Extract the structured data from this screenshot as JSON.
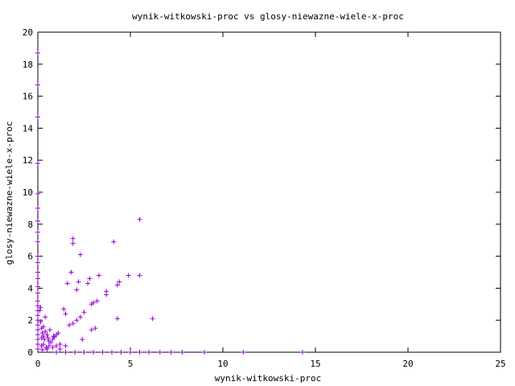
{
  "chart_data": {
    "type": "scatter",
    "title": "wynik-witkowski-proc vs glosy-niewazne-wiele-x-proc",
    "xlabel": "wynik-witkowski-proc",
    "ylabel": "glosy-niewazne-wiele-x-proc",
    "xlim": [
      0,
      25
    ],
    "ylim": [
      0,
      20
    ],
    "xticks": [
      "0",
      "5",
      "10",
      "15",
      "20",
      "25"
    ],
    "yticks": [
      "0",
      "2",
      "4",
      "6",
      "8",
      "10",
      "12",
      "14",
      "16",
      "18",
      "20"
    ],
    "grid": false,
    "legend": "none",
    "marker": "plus",
    "color": "#9400d3",
    "series": [
      {
        "points": [
          [
            0,
            18.7
          ],
          [
            0,
            16.7
          ],
          [
            0,
            14.7
          ],
          [
            0,
            11.8
          ],
          [
            0,
            9.9
          ],
          [
            0,
            9.0
          ],
          [
            0,
            8.2
          ],
          [
            0,
            7.5
          ],
          [
            0,
            6.9
          ],
          [
            0,
            6.0
          ],
          [
            0,
            5.6
          ],
          [
            0,
            5.0
          ],
          [
            0,
            4.6
          ],
          [
            0,
            4.1
          ],
          [
            0,
            3.7
          ],
          [
            0,
            3.2
          ],
          [
            0,
            2.9
          ],
          [
            0,
            2.6
          ],
          [
            0,
            2.3
          ],
          [
            0,
            2.0
          ],
          [
            0,
            1.7
          ],
          [
            0,
            1.4
          ],
          [
            0,
            1.1
          ],
          [
            0,
            0.8
          ],
          [
            0,
            0.5
          ],
          [
            0,
            0.2
          ],
          [
            0.1,
            2.6
          ],
          [
            0.15,
            1.9
          ],
          [
            0.2,
            1.5
          ],
          [
            0.25,
            1.2
          ],
          [
            0.3,
            1.0
          ],
          [
            0.35,
            0.8
          ],
          [
            0.4,
            1.3
          ],
          [
            0.5,
            1.1
          ],
          [
            0.55,
            0.9
          ],
          [
            0.6,
            0.7
          ],
          [
            0.7,
            0.6
          ],
          [
            0.8,
            0.8
          ],
          [
            0.9,
            0.95
          ],
          [
            1.0,
            1.1
          ],
          [
            1.1,
            1.2
          ],
          [
            0.2,
            0.4
          ],
          [
            0.3,
            0.5
          ],
          [
            0.45,
            0.3
          ],
          [
            0.5,
            0.2
          ],
          [
            0.2,
            0.9
          ],
          [
            0.3,
            1.6
          ],
          [
            0.15,
            2.8
          ],
          [
            0.4,
            2.2
          ],
          [
            0.6,
            0.4
          ],
          [
            0.8,
            0.3
          ],
          [
            1.0,
            0.4
          ],
          [
            1.2,
            0.5
          ],
          [
            0.25,
            0.15
          ],
          [
            0.65,
            1.4
          ],
          [
            0.85,
            1.0
          ],
          [
            1.4,
            2.7
          ],
          [
            1.5,
            2.4
          ],
          [
            1.6,
            4.3
          ],
          [
            1.7,
            1.7
          ],
          [
            1.9,
            1.8
          ],
          [
            1.9,
            7.1
          ],
          [
            1.9,
            6.8
          ],
          [
            1.8,
            5.0
          ],
          [
            2.1,
            3.9
          ],
          [
            2.2,
            4.4
          ],
          [
            2.3,
            6.1
          ],
          [
            2.1,
            2.0
          ],
          [
            2.3,
            2.2
          ],
          [
            2.5,
            2.5
          ],
          [
            2.7,
            4.3
          ],
          [
            2.8,
            4.6
          ],
          [
            2.9,
            3.0
          ],
          [
            2.9,
            1.4
          ],
          [
            3.1,
            1.5
          ],
          [
            3.0,
            3.1
          ],
          [
            3.2,
            3.2
          ],
          [
            3.3,
            4.8
          ],
          [
            3.7,
            3.8
          ],
          [
            3.7,
            3.6
          ],
          [
            4.1,
            6.9
          ],
          [
            4.3,
            4.2
          ],
          [
            4.4,
            4.4
          ],
          [
            4.3,
            2.1
          ],
          [
            4.9,
            4.8
          ],
          [
            5.5,
            8.3
          ],
          [
            5.5,
            4.8
          ],
          [
            6.2,
            2.1
          ],
          [
            1.5,
            0.4
          ],
          [
            2.4,
            0.8
          ],
          [
            1.2,
            0.2
          ],
          [
            1.0,
            0
          ],
          [
            1.5,
            0
          ],
          [
            2.0,
            0
          ],
          [
            2.5,
            0
          ],
          [
            3.0,
            0
          ],
          [
            3.5,
            0
          ],
          [
            4.0,
            0
          ],
          [
            4.5,
            0
          ],
          [
            5.0,
            0
          ],
          [
            5.5,
            0
          ],
          [
            6.0,
            0
          ],
          [
            6.6,
            0
          ],
          [
            7.2,
            0
          ],
          [
            7.8,
            0
          ],
          [
            9.0,
            0
          ],
          [
            11.1,
            0
          ],
          [
            14.3,
            0
          ]
        ]
      }
    ]
  }
}
